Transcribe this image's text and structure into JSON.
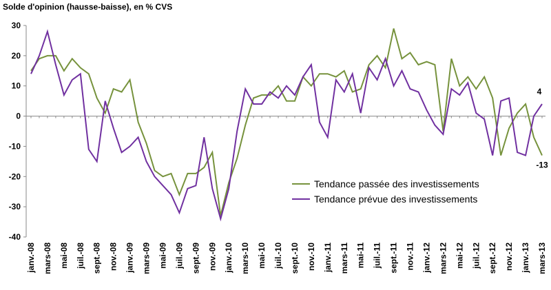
{
  "chart_data": {
    "type": "line",
    "title": "Solde d'opinion (hausse-baisse), en % CVS",
    "categories": [
      "janv.-08",
      null,
      "mars-08",
      null,
      "mai-08",
      null,
      "juil.-08",
      null,
      "sept.-08",
      null,
      "nov.-08",
      null,
      "janv.-09",
      null,
      "mars-09",
      null,
      "mai-09",
      null,
      "juil.-09",
      null,
      "sept.-09",
      null,
      "nov.-09",
      null,
      "janv.-10",
      null,
      "mars-10",
      null,
      "mai-10",
      null,
      "juil.-10",
      null,
      "sept.-10",
      null,
      "nov.-10",
      null,
      "janv.-11",
      null,
      "mars-11",
      null,
      "mai-11",
      null,
      "juil.-11",
      null,
      "sept.-11",
      null,
      "nov.-11",
      null,
      "janv.-12",
      null,
      "mars-12",
      null,
      "mai-12",
      null,
      "juil.-12",
      null,
      "sept.-12",
      null,
      "nov.-12",
      null,
      "janv.-13",
      null,
      "mars-13"
    ],
    "series": [
      {
        "name": "Tendance passée des investissements",
        "color": "#76923c",
        "values": [
          15,
          19,
          20,
          20,
          15,
          19,
          16,
          14,
          6,
          1,
          9,
          8,
          12,
          -2,
          -9,
          -18,
          -20,
          -19,
          -26,
          -19,
          -19,
          -17,
          -12,
          -33,
          -22,
          -14,
          -3,
          6,
          7,
          7,
          10,
          5,
          5,
          13,
          10,
          14,
          14,
          13,
          15,
          8,
          9,
          17,
          20,
          16,
          29,
          19,
          21,
          17,
          18,
          17,
          -5,
          19,
          10,
          13,
          9,
          13,
          6,
          -13,
          -4,
          1,
          4,
          -7,
          -13
        ]
      },
      {
        "name": "Tendance prévue des investissements",
        "color": "#7030a0",
        "values": [
          14,
          20,
          28,
          17,
          7,
          12,
          14,
          -11,
          -15,
          5,
          -4,
          -12,
          -10,
          -7,
          -15,
          -20,
          -23,
          -26,
          -32,
          -24,
          -23,
          -7,
          -24,
          -34,
          -24,
          -5,
          9,
          4,
          4,
          8,
          6,
          10,
          7,
          13,
          17,
          -2,
          -7,
          12,
          8,
          14,
          1,
          16,
          12,
          19,
          10,
          15,
          9,
          8,
          2,
          -3,
          -6,
          9,
          7,
          11,
          1,
          -1,
          -13,
          5,
          6,
          -12,
          -13,
          0,
          4
        ]
      }
    ],
    "ylim": [
      -40,
      30
    ],
    "yticks": [
      -40,
      -30,
      -20,
      -10,
      0,
      10,
      20,
      30
    ]
  }
}
